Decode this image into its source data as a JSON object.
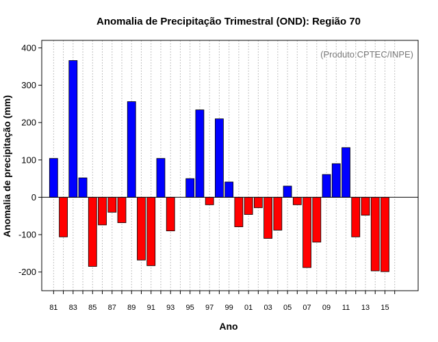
{
  "chart_data": {
    "type": "bar",
    "title": "Anomalia de Precipitação Trimestral (OND): Região 70",
    "xlabel": "Ano",
    "ylabel": "Anomalia de precipitação (mm)",
    "credit": "(Produto:CPTEC/INPE)",
    "ylim": [
      -250,
      420
    ],
    "yticks": [
      -200,
      -100,
      0,
      100,
      200,
      300,
      400
    ],
    "categories": [
      "81",
      "82",
      "83",
      "84",
      "85",
      "86",
      "87",
      "88",
      "89",
      "90",
      "91",
      "92",
      "93",
      "94",
      "95",
      "96",
      "97",
      "98",
      "99",
      "00",
      "01",
      "02",
      "03",
      "04",
      "05",
      "06",
      "07",
      "08",
      "09",
      "10",
      "11",
      "12",
      "13",
      "14",
      "15",
      "16"
    ],
    "values": [
      104,
      -106,
      366,
      52,
      -185,
      -74,
      -40,
      -68,
      256,
      -168,
      -183,
      104,
      -90,
      0,
      50,
      234,
      -20,
      210,
      41,
      -79,
      -46,
      -28,
      -110,
      -88,
      30,
      -20,
      -188,
      -120,
      61,
      90,
      133,
      -106,
      -48,
      -197,
      -199,
      0
    ],
    "xtick_labels": [
      "81",
      "83",
      "85",
      "87",
      "89",
      "91",
      "93",
      "95",
      "97",
      "99",
      "01",
      "03",
      "05",
      "07",
      "09",
      "11",
      "13",
      "15"
    ],
    "colors": {
      "positive": "#0000ff",
      "negative": "#ff0000",
      "grid": "#c0c0c0"
    },
    "grid": true,
    "legend": "none"
  }
}
